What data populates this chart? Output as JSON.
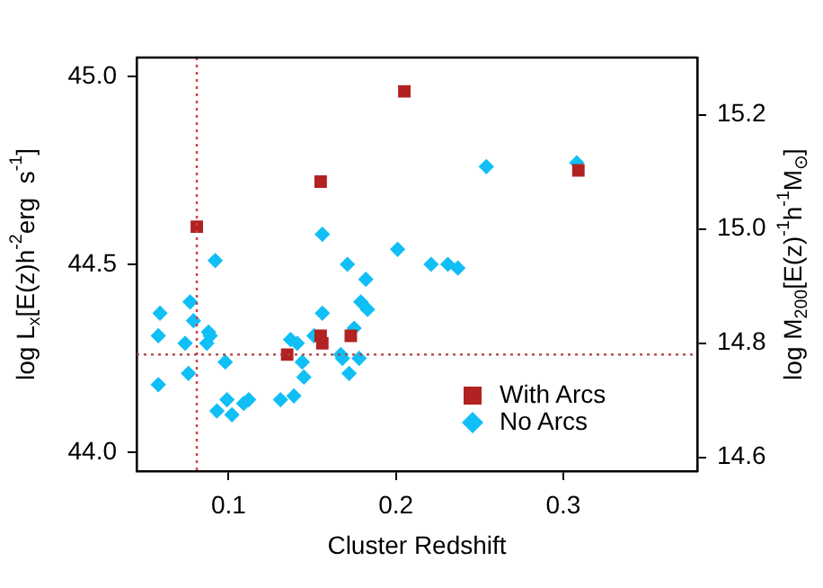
{
  "chart_data": {
    "type": "scatter",
    "xlabel": "Cluster Redshift",
    "ylabel": "log L$_{x}$[E(z)h$^{-2}$erg  s$^{-1}$]",
    "y2label": "log M$_{200}$[E(z)$^{-1}$h$^{-1}$M$_{⊙}$]",
    "xlim": [
      0.045,
      0.38
    ],
    "xticks": [
      0.1,
      0.2,
      0.3
    ],
    "ylim": [
      43.95,
      45.05
    ],
    "yticks": [
      {
        "value": 44.0,
        "label": "44.0"
      },
      {
        "value": 44.5,
        "label": "44.5"
      },
      {
        "value": 45.0,
        "label": "45.0"
      }
    ],
    "y2lim": [
      14.576,
      15.3
    ],
    "y2ticks": [
      {
        "value": 14.6,
        "label": "14.6"
      },
      {
        "value": 14.8,
        "label": "14.8"
      },
      {
        "value": 15.0,
        "label": "15.0"
      },
      {
        "value": 15.2,
        "label": "15.2"
      }
    ],
    "grid": false,
    "legend": "bottom right",
    "ref_lines": [
      {
        "axis": "x",
        "value": 0.081,
        "color": "#d04040",
        "line_style": "dotted"
      },
      {
        "axis": "y",
        "value": 44.26,
        "color": "#b04040",
        "line_style": "dotted"
      }
    ],
    "series": [
      {
        "name": "With Arcs",
        "color": "#b22222",
        "marker": "square",
        "x": [
          0.081,
          0.155,
          0.205,
          0.135,
          0.155,
          0.156,
          0.173,
          0.309
        ],
        "values": [
          44.6,
          44.72,
          44.96,
          44.26,
          44.31,
          44.29,
          44.31,
          44.75
        ]
      },
      {
        "name": "No Arcs",
        "color": "#10bff5",
        "marker": "diamond",
        "x": [
          0.058,
          0.058,
          0.059,
          0.074,
          0.076,
          0.077,
          0.079,
          0.087,
          0.088,
          0.089,
          0.092,
          0.093,
          0.098,
          0.099,
          0.102,
          0.109,
          0.112,
          0.131,
          0.137,
          0.139,
          0.141,
          0.144,
          0.145,
          0.151,
          0.156,
          0.156,
          0.167,
          0.168,
          0.171,
          0.172,
          0.175,
          0.178,
          0.179,
          0.182,
          0.183,
          0.201,
          0.221,
          0.231,
          0.237,
          0.254,
          0.308
        ],
        "values": [
          44.18,
          44.31,
          44.37,
          44.29,
          44.21,
          44.4,
          44.35,
          44.29,
          44.32,
          44.31,
          44.51,
          44.11,
          44.24,
          44.14,
          44.1,
          44.13,
          44.14,
          44.14,
          44.3,
          44.15,
          44.29,
          44.24,
          44.2,
          44.31,
          44.58,
          44.37,
          44.26,
          44.25,
          44.5,
          44.21,
          44.33,
          44.25,
          44.4,
          44.46,
          44.38,
          44.54,
          44.5,
          44.5,
          44.49,
          44.76,
          44.77
        ]
      }
    ]
  }
}
